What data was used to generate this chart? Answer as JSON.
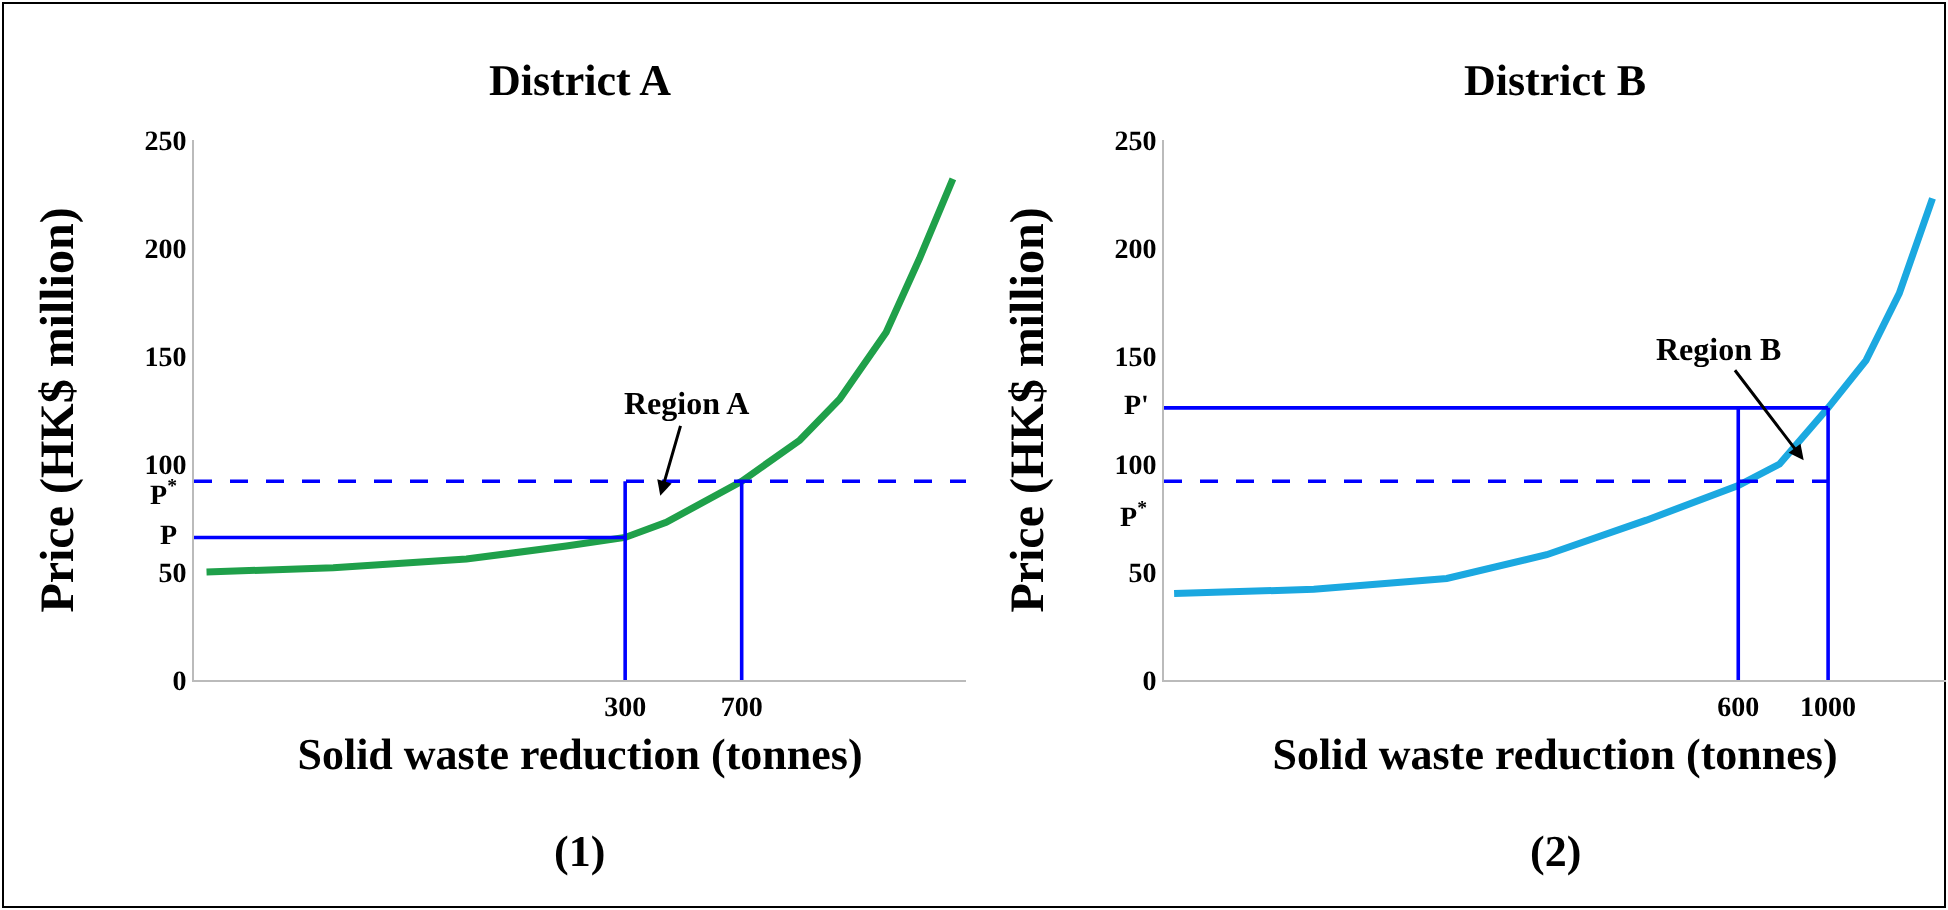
{
  "chart_data": [
    {
      "type": "line",
      "title": "District A",
      "xlabel": "Solid waste reduction (tonnes)",
      "ylabel": "Price (HK$ million)",
      "annotations": [
        "(1)",
        "Region A",
        "P",
        "P$^{*}$"
      ],
      "xlim": [
        -1180,
        1470
      ],
      "xticks": [
        300,
        700
      ],
      "ylim": [
        0,
        250
      ],
      "yticks": [
        0,
        50,
        100,
        150,
        200,
        250
      ],
      "marker": "none",
      "line_style": "solid",
      "ref_lines": [
        {
          "axis": "y",
          "value": 92,
          "color": "#0000ff",
          "line_style": "dashed"
        }
      ],
      "series": [
        {
          "color": "#1fa04a",
          "x": [
            -1137,
            -702,
            -245,
            98,
            300,
            441,
            700,
            899,
            1036,
            1196,
            1310,
            1425
          ],
          "values": [
            50,
            52,
            56,
            62,
            66,
            73,
            92,
            111,
            130,
            161,
            195,
            232
          ]
        },
        {
          "type": "line",
          "color": "#0000ff",
          "x": [
            -1180,
            300
          ],
          "values": [
            66,
            66
          ]
        },
        {
          "type": "line",
          "color": "#0000ff",
          "x": [
            300,
            300
          ],
          "values": [
            0,
            92
          ]
        },
        {
          "type": "line",
          "color": "#0000ff",
          "x": [
            700,
            700
          ],
          "values": [
            0,
            92
          ]
        }
      ]
    },
    {
      "type": "line",
      "title": "District B",
      "xlabel": "Solid waste reduction (tonnes)",
      "ylabel": "Price (HK$ million)",
      "annotations": [
        "(2)",
        "Region B",
        "P'",
        "P$^{*}$"
      ],
      "xlim": [
        -1957,
        1525
      ],
      "xticks": [
        600,
        1000
      ],
      "ylim": [
        0,
        250
      ],
      "yticks": [
        0,
        50,
        100,
        150,
        200,
        250
      ],
      "marker": "none",
      "line_style": "solid",
      "series": [
        {
          "color": "#1ba8e0",
          "x": [
            -1912,
            -1290,
            -698,
            -253,
            191,
            600,
            784,
            1000,
            1169,
            1317,
            1465
          ],
          "values": [
            40,
            42,
            47,
            58,
            74,
            90,
            100,
            126,
            148,
            179,
            223
          ]
        },
        {
          "type": "line",
          "color": "#0000ff",
          "x": [
            -1957,
            1000
          ],
          "values": [
            126,
            126
          ]
        },
        {
          "type": "line",
          "color": "#0000ff",
          "x": [
            600,
            600
          ],
          "values": [
            0,
            126
          ]
        },
        {
          "type": "line",
          "color": "#0000ff",
          "x": [
            1000,
            1000
          ],
          "values": [
            0,
            126
          ]
        },
        {
          "type": "line",
          "color": "#0000ff",
          "line_style": "dashed",
          "x": [
            -1957,
            1000
          ],
          "values": [
            92,
            92
          ]
        }
      ]
    }
  ]
}
